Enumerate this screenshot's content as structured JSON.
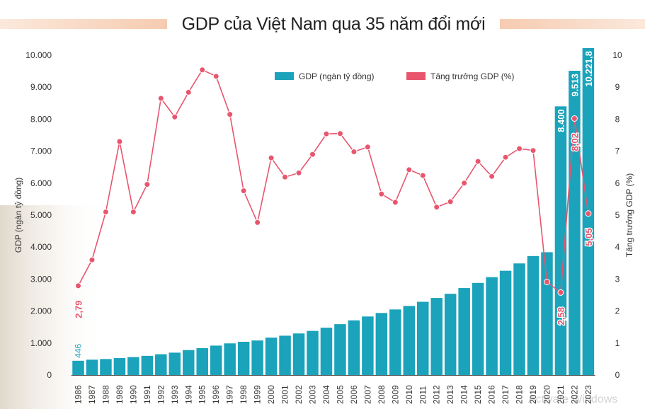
{
  "title": "GDP của Việt Nam qua 35 năm đổi mới",
  "watermark": "Activate Windows",
  "colors": {
    "bar": "#1aa3bb",
    "line": "#e8566e",
    "title_band": "#f6cbb0"
  },
  "chart_data": {
    "type": "bar",
    "title": "GDP của Việt Nam qua 35 năm đổi mới",
    "categories": [
      "1986",
      "1987",
      "1988",
      "1989",
      "1990",
      "1991",
      "1992",
      "1993",
      "1994",
      "1995",
      "1996",
      "1997",
      "1998",
      "1999",
      "2000",
      "2001",
      "2002",
      "2003",
      "2004",
      "2005",
      "2006",
      "2007",
      "2008",
      "2009",
      "2010",
      "2011",
      "2012",
      "2013",
      "2014",
      "2015",
      "2016",
      "2017",
      "2018",
      "2019",
      "2020",
      "2021",
      "2022",
      "2023"
    ],
    "ylabel": "GDP (ngàn tỷ đồng)",
    "y2label": "Tăng trưởng GDP (%)",
    "ylim": [
      0,
      10000
    ],
    "y2lim": [
      0,
      10
    ],
    "yticks": [
      "0",
      "1.000",
      "2.000",
      "3.000",
      "4.000",
      "5.000",
      "6.000",
      "7.000",
      "8.000",
      "9.000",
      "10.000"
    ],
    "y2ticks": [
      "0",
      "1",
      "2",
      "3",
      "4",
      "5",
      "6",
      "7",
      "8",
      "9",
      "10"
    ],
    "legend_position": "top-center",
    "series": [
      {
        "name": "GDP (ngàn tỷ đồng)",
        "type": "bar",
        "values": [
          446,
          480,
          500,
          530,
          560,
          600,
          650,
          700,
          780,
          840,
          920,
          990,
          1040,
          1080,
          1170,
          1230,
          1300,
          1380,
          1480,
          1590,
          1710,
          1830,
          1940,
          2050,
          2160,
          2290,
          2410,
          2540,
          2720,
          2880,
          3060,
          3260,
          3490,
          3720,
          3840,
          8400,
          9513,
          10221.8
        ]
      },
      {
        "name": "Tăng trưởng GDP (%)",
        "type": "line",
        "values": [
          2.79,
          3.6,
          5.1,
          7.3,
          5.1,
          5.96,
          8.65,
          8.07,
          8.84,
          9.54,
          9.34,
          8.15,
          5.76,
          4.77,
          6.79,
          6.19,
          6.32,
          6.9,
          7.54,
          7.55,
          6.98,
          7.13,
          5.66,
          5.4,
          6.42,
          6.24,
          5.25,
          5.42,
          6.0,
          6.68,
          6.21,
          6.81,
          7.08,
          7.02,
          2.91,
          2.58,
          8.02,
          5.05
        ]
      }
    ],
    "data_labels": [
      {
        "series": 0,
        "index": 0,
        "text": "446"
      },
      {
        "series": 0,
        "index": 35,
        "text": "8.400"
      },
      {
        "series": 0,
        "index": 36,
        "text": "9.513"
      },
      {
        "series": 0,
        "index": 37,
        "text": "10.221,8"
      },
      {
        "series": 1,
        "index": 0,
        "text": "2,79"
      },
      {
        "series": 1,
        "index": 35,
        "text": "2,58"
      },
      {
        "series": 1,
        "index": 36,
        "text": "8,02"
      },
      {
        "series": 1,
        "index": 37,
        "text": "5,05"
      }
    ]
  }
}
